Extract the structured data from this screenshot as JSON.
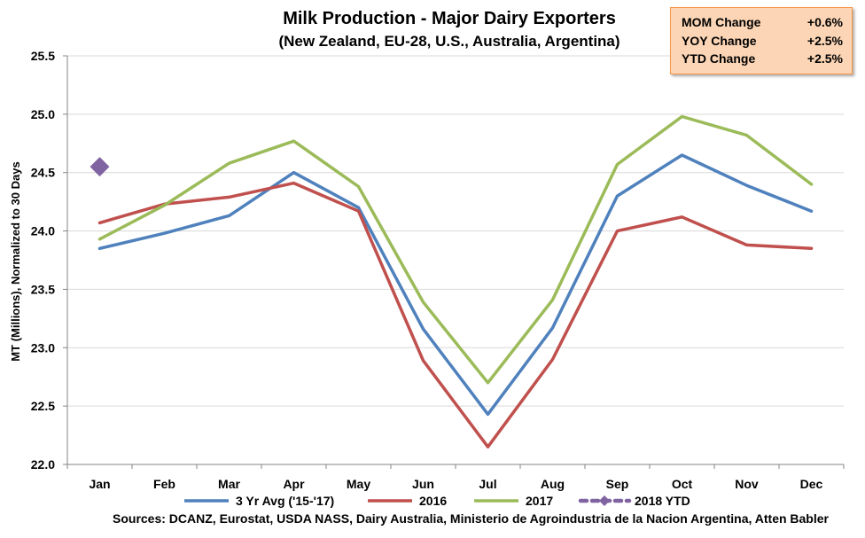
{
  "chart_data": {
    "type": "line",
    "title": "Milk Production  - Major Dairy Exporters",
    "subtitle": "(New Zealand, EU-28, U.S., Australia,  Argentina)",
    "ylabel": "MT (Millions), Normalized to 30 Days",
    "xlabel": "",
    "categories": [
      "Jan",
      "Feb",
      "Mar",
      "Apr",
      "May",
      "Jun",
      "Jul",
      "Aug",
      "Sep",
      "Oct",
      "Nov",
      "Dec"
    ],
    "ylim": [
      22.0,
      25.5
    ],
    "yticks": [
      "22.0",
      "22.5",
      "23.0",
      "23.5",
      "24.0",
      "24.5",
      "25.0",
      "25.5"
    ],
    "grid": "horizontal",
    "legend_position": "bottom",
    "series": [
      {
        "name": "3 Yr Avg ('15-'17)",
        "color": "#4f81bd",
        "style": "line",
        "values": [
          23.85,
          23.98,
          24.13,
          24.5,
          24.2,
          23.16,
          22.43,
          23.17,
          24.3,
          24.65,
          24.39,
          24.17
        ]
      },
      {
        "name": "2016",
        "color": "#c0504d",
        "style": "line",
        "values": [
          24.07,
          24.23,
          24.29,
          24.41,
          24.17,
          22.89,
          22.15,
          22.9,
          24.0,
          24.12,
          23.88,
          23.85
        ]
      },
      {
        "name": "2017",
        "color": "#9bbb59",
        "style": "line",
        "values": [
          23.93,
          24.22,
          24.58,
          24.77,
          24.38,
          23.39,
          22.7,
          23.41,
          24.57,
          24.98,
          24.82,
          24.4
        ]
      },
      {
        "name": "2018 YTD",
        "color": "#8064a2",
        "style": "marker",
        "values": [
          24.55,
          null,
          null,
          null,
          null,
          null,
          null,
          null,
          null,
          null,
          null,
          null
        ]
      }
    ]
  },
  "stats_box": {
    "rows": [
      {
        "label": "MOM Change",
        "value": "+0.6%"
      },
      {
        "label": "YOY Change",
        "value": "+2.5%"
      },
      {
        "label": "YTD Change",
        "value": "+2.5%"
      }
    ]
  },
  "source_note": "Sources: DCANZ, Eurostat, USDA NASS, Dairy Australia, Ministerio de Agroindustria de la Nacion Argentina, Atten Babler"
}
